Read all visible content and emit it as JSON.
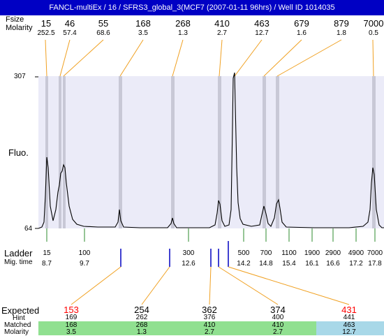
{
  "title": "FANCL-multiEx / 16 / SFRS3_global_3(MCF7 (2007-01-11 96hrs) / Well ID 1014035",
  "labels": {
    "header_size": "Fsize",
    "header_molarity": "Molarity",
    "y_axis": "Fluo.",
    "ladder": "Ladder",
    "mig_time": "Mig. time",
    "expected": "Expected",
    "hint": "Hint",
    "matched": "Matched",
    "molarity": "Molarity"
  },
  "peaks": [
    {
      "size": "15",
      "molarity": "252.5"
    },
    {
      "size": "46",
      "molarity": "57.4"
    },
    {
      "size": "55",
      "molarity": "68.6"
    },
    {
      "size": "168",
      "molarity": "3.5"
    },
    {
      "size": "268",
      "molarity": "1.3"
    },
    {
      "size": "410",
      "molarity": "2.7"
    },
    {
      "size": "463",
      "molarity": "12.7"
    },
    {
      "size": "679",
      "molarity": "1.6"
    },
    {
      "size": "879",
      "molarity": "1.8"
    },
    {
      "size": "7000",
      "molarity": "0.5"
    }
  ],
  "ladder": [
    {
      "size": "15",
      "time": "8.7"
    },
    {
      "size": "100",
      "time": "9.7"
    },
    {
      "size": "300",
      "time": "12.6"
    },
    {
      "size": "500",
      "time": "14.2"
    },
    {
      "size": "700",
      "time": "14.8"
    },
    {
      "size": "1100",
      "time": "15.4"
    },
    {
      "size": "1900",
      "time": "16.1"
    },
    {
      "size": "2900",
      "time": "16.6"
    },
    {
      "size": "4900",
      "time": "17.2"
    },
    {
      "size": "7000",
      "time": "17.8"
    }
  ],
  "chart_data": {
    "type": "line",
    "ylabel": "Fluo.",
    "ylim": [
      64,
      307
    ],
    "y_ticks": [
      "307",
      "64"
    ]
  },
  "expected": [
    {
      "value": "153",
      "hint": "169",
      "matched": "168",
      "molarity": "3.5",
      "color": "#ff0000"
    },
    {
      "value": "254",
      "hint": "262",
      "matched": "268",
      "molarity": "1.3",
      "color": "#000000"
    },
    {
      "value": "362",
      "hint": "376",
      "matched": "410",
      "molarity": "2.7",
      "color": "#000000"
    },
    {
      "value": "374",
      "hint": "400",
      "matched": "410",
      "molarity": "2.7",
      "color": "#000000"
    },
    {
      "value": "431",
      "hint": "441",
      "matched": "463",
      "molarity": "12.7",
      "color": "#ff0000"
    }
  ],
  "colors": {
    "title_bg": "#0000c4",
    "plot_bg": "#ebebf8",
    "orange_line": "#f0a020",
    "green_tick": "#2e8b2e",
    "matched_green": "#90e090",
    "matched_blue": "#a8d8e8"
  }
}
